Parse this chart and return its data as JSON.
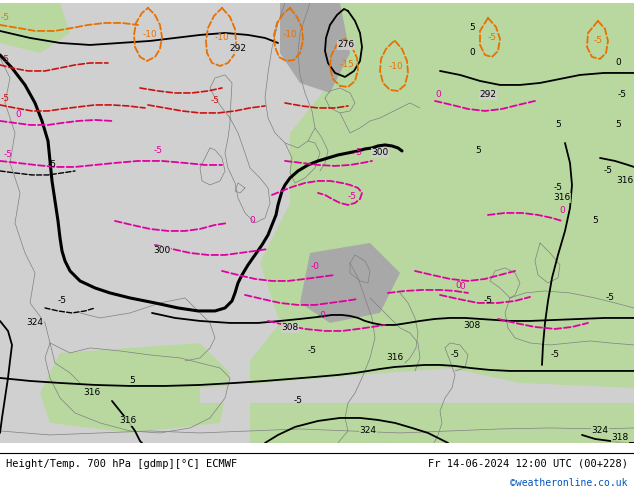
{
  "title_left": "Height/Temp. 700 hPa [gdmp][°C] ECMWF",
  "title_right": "Fr 14-06-2024 12:00 UTC (00+228)",
  "credit": "©weatheronline.co.uk",
  "fig_width": 6.34,
  "fig_height": 4.9,
  "dpi": 100,
  "bg_gray": "#d0d0d0",
  "bg_green": "#b8d8a0",
  "bg_dark_gray": "#a8a8a8",
  "coast_color": "#808080",
  "black": "#000000",
  "magenta": "#e000a0",
  "orange": "#e87000",
  "red": "#cc1010",
  "credit_color": "#0055bb",
  "title_fontsize": 7.5,
  "credit_fontsize": 7,
  "label_fs": 6.5
}
